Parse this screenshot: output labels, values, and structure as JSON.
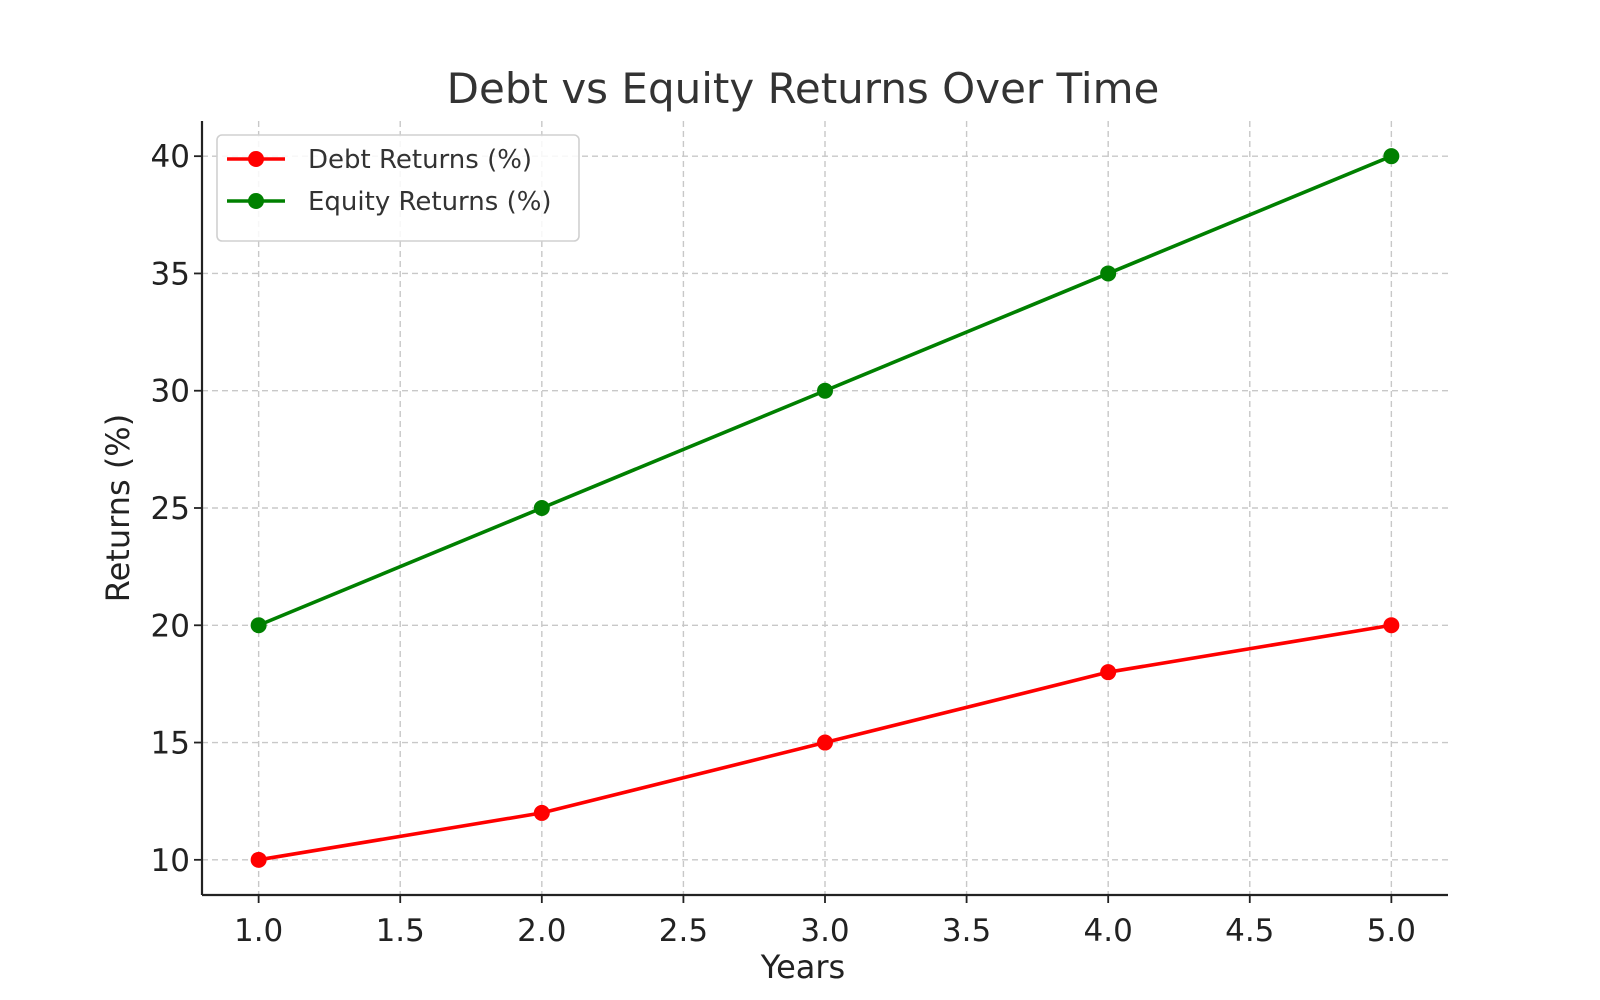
{
  "chart_data": {
    "type": "line",
    "title": "Debt vs Equity Returns Over Time",
    "xlabel": "Years",
    "ylabel": "Returns (%)",
    "x": [
      1,
      2,
      3,
      4,
      5
    ],
    "series": [
      {
        "name": "Debt Returns (%)",
        "values": [
          10,
          12,
          15,
          18,
          20
        ],
        "color": "#ff0000"
      },
      {
        "name": "Equity Returns (%)",
        "values": [
          20,
          25,
          30,
          35,
          40
        ],
        "color": "#008000"
      }
    ],
    "xlim": [
      0.8,
      5.2
    ],
    "ylim": [
      8.5,
      41.5
    ],
    "xticks": [
      1.0,
      1.5,
      2.0,
      2.5,
      3.0,
      3.5,
      4.0,
      4.5,
      5.0
    ],
    "yticks": [
      10,
      15,
      20,
      25,
      30,
      35,
      40
    ],
    "grid": true,
    "legend_position": "top-left"
  }
}
